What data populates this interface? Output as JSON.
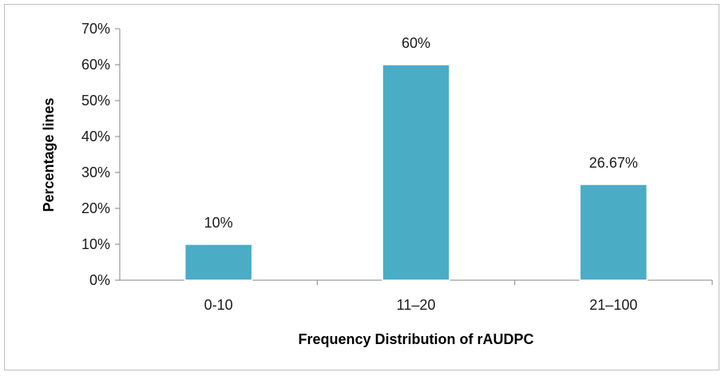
{
  "chart_data": {
    "type": "bar",
    "title": "",
    "xlabel": "Frequency Distribution of rAUDPC",
    "ylabel": "Percentage lines",
    "categories": [
      "0-10",
      "11–20",
      "21–100"
    ],
    "values": [
      10,
      60,
      26.67
    ],
    "data_labels": [
      "10%",
      "60%",
      "26.67%"
    ],
    "ylim": [
      0,
      70
    ],
    "yticks": [
      0,
      10,
      20,
      30,
      40,
      50,
      60,
      70
    ],
    "ytick_labels": [
      "0%",
      "10%",
      "20%",
      "30%",
      "40%",
      "50%",
      "60%",
      "70%"
    ],
    "bar_color": "#4bacc6",
    "grid": false,
    "legend": "none"
  }
}
